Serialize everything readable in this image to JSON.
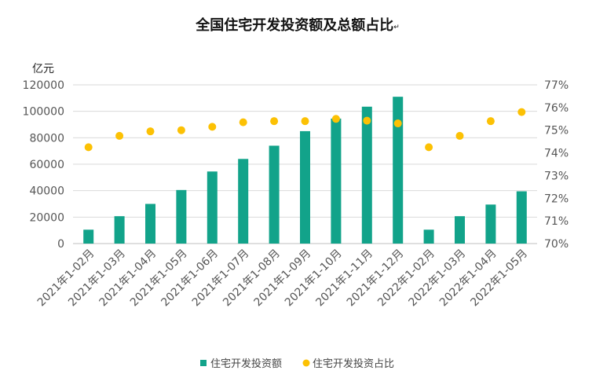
{
  "chart_data": {
    "type": "bar",
    "title": "全国住宅开发投资额及总额占比",
    "title_mark": "↵",
    "y_unit": "亿元",
    "categories": [
      "2021年1-02月",
      "2021年1-03月",
      "2021年1-04月",
      "2021年1-05月",
      "2021年1-06月",
      "2021年1-07月",
      "2021年1-08月",
      "2021年1-09月",
      "2021年1-10月",
      "2021年1-11月",
      "2021年1-12月",
      "2022年1-02月",
      "2022年1-03月",
      "2022年1-04月",
      "2022年1-05月"
    ],
    "series": [
      {
        "name": "住宅开发投资额",
        "type": "bar",
        "axis": "left",
        "color": "#12a38a",
        "values": [
          10500,
          20700,
          30000,
          40500,
          54500,
          64000,
          74000,
          85000,
          94500,
          103500,
          111000,
          10500,
          20700,
          29500,
          39500
        ]
      },
      {
        "name": "住宅开发投资占比",
        "type": "scatter",
        "axis": "right",
        "color": "#fcc104",
        "values": [
          74.25,
          74.75,
          74.95,
          75.0,
          75.15,
          75.35,
          75.4,
          75.4,
          75.5,
          75.42,
          75.3,
          74.25,
          74.75,
          75.4,
          75.8
        ]
      }
    ],
    "ylim_left": [
      0,
      120000
    ],
    "yticks_left": [
      "0",
      "20000",
      "40000",
      "60000",
      "80000",
      "100000",
      "120000"
    ],
    "ylim_right": [
      70,
      77
    ],
    "yticks_right": [
      "70%",
      "71%",
      "72%",
      "73%",
      "74%",
      "75%",
      "76%",
      "77%"
    ],
    "grid": true,
    "legend_position": "bottom"
  }
}
